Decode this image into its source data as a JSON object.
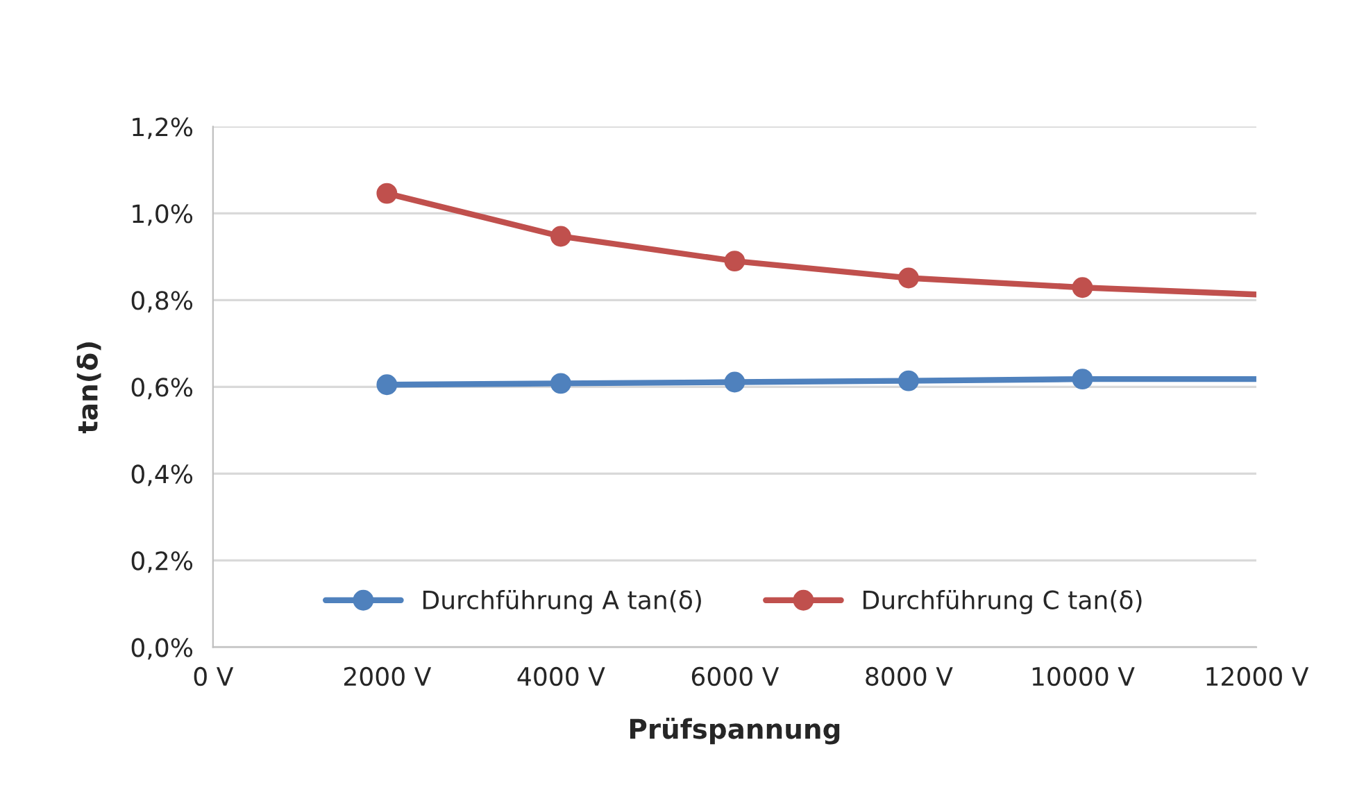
{
  "chart_data": {
    "type": "line",
    "xlabel": "Prüfspannung",
    "ylabel": "tan(δ)",
    "series": [
      {
        "name": "Durchführung A tan(δ)",
        "color": "#4f81bd",
        "x": [
          2000,
          4000,
          6000,
          8000,
          10000,
          12000
        ],
        "values": [
          0.605,
          0.608,
          0.611,
          0.614,
          0.618,
          0.618
        ]
      },
      {
        "name": "Durchführung C tan(δ)",
        "color": "#c0504d",
        "x": [
          2000,
          4000,
          6000,
          8000,
          10000,
          12000
        ],
        "values": [
          1.046,
          0.947,
          0.89,
          0.851,
          0.829,
          0.813
        ]
      }
    ],
    "xlim": [
      0,
      12000
    ],
    "xticks": [
      {
        "value": 0,
        "label": "0 V"
      },
      {
        "value": 2000,
        "label": "2000 V"
      },
      {
        "value": 4000,
        "label": "4000 V"
      },
      {
        "value": 6000,
        "label": "6000 V"
      },
      {
        "value": 8000,
        "label": "8000 V"
      },
      {
        "value": 10000,
        "label": "10000 V"
      },
      {
        "value": 12000,
        "label": "12000 V"
      }
    ],
    "ylim": [
      0,
      1.2
    ],
    "yticks": [
      {
        "value": 0,
        "label": "0,0%"
      },
      {
        "value": 0.2,
        "label": "0,2%"
      },
      {
        "value": 0.4,
        "label": "0,4%"
      },
      {
        "value": 0.6,
        "label": "0,6%"
      },
      {
        "value": 0.8,
        "label": "0,8%"
      },
      {
        "value": 1.0,
        "label": "1,0%"
      },
      {
        "value": 1.2,
        "label": "1,2%"
      }
    ],
    "grid": "y",
    "legend": "bottom",
    "marker": "circle",
    "line_style": "solid"
  }
}
